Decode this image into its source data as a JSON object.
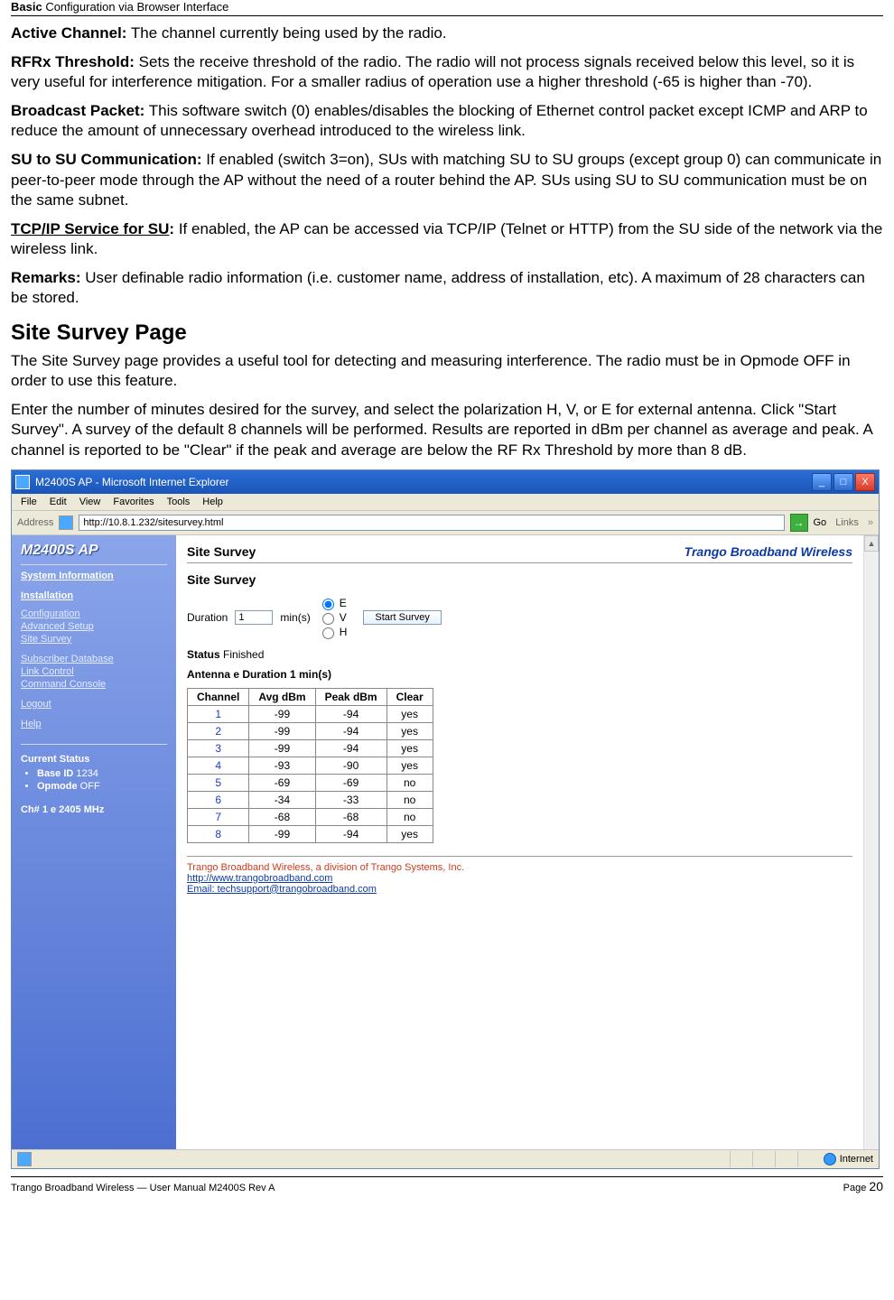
{
  "header": {
    "bold": "Basic",
    "rest": " Configuration via Browser Interface"
  },
  "definitions": [
    {
      "term": "Active Channel:",
      "text": "  The channel currently being used by the radio."
    },
    {
      "term": "RFRx Threshold:",
      "text": "  Sets the receive threshold of the radio. The radio will not process signals received below this level, so it is very useful for interference mitigation. For a smaller radius of operation use a higher threshold (-65 is higher than -70)."
    },
    {
      "term": "Broadcast Packet:",
      "text": "  This software switch (0) enables/disables the blocking of Ethernet control packet except ICMP and ARP to reduce the amount of unnecessary overhead introduced to the wireless link."
    },
    {
      "term": "SU to SU Communication:",
      "text": "  If enabled (switch 3=on), SUs with matching SU to SU groups (except group 0) can communicate in peer-to-peer mode through the AP without the need of a router behind the AP. SUs using SU to SU communication must be on the same subnet."
    },
    {
      "term": "TCP/IP Service for SU",
      "suffix": ":",
      "text": "  If enabled, the AP can be accessed via TCP/IP (Telnet or HTTP) from the SU side of the network via the wireless link."
    },
    {
      "term": "Remarks:",
      "text": "  User definable radio information (i.e. customer name, address of installation, etc). A maximum of 28 characters can be stored."
    }
  ],
  "section_title": "Site Survey Page",
  "section_p1": "The Site Survey page provides a useful tool for detecting and measuring interference. The radio must be in Opmode OFF in order to use this feature.",
  "section_p2": "Enter the number of minutes desired for the survey, and select the polarization H, V, or E for external antenna.  Click \"Start Survey\".  A survey of the default 8 channels will be performed.  Results are reported in dBm per channel as average and peak.  A channel is reported to be \"Clear\" if the peak and average are below the RF Rx Threshold by more than 8 dB.",
  "browser": {
    "title": "M2400S AP - Microsoft Internet Explorer",
    "menus": [
      "File",
      "Edit",
      "View",
      "Favorites",
      "Tools",
      "Help"
    ],
    "address_label": "Address",
    "url": "http://10.8.1.232/sitesurvey.html",
    "go_label": "Go",
    "links_label": "Links",
    "status_zone": "Internet"
  },
  "sidebar": {
    "brand": "M2400S AP",
    "nav": {
      "sysinfo": "System Information",
      "install": "Installation",
      "config": "Configuration",
      "advanced": "Advanced Setup",
      "survey": "Site Survey",
      "subdb": "Subscriber Database",
      "linkctl": "Link Control",
      "cmd": "Command Console",
      "logout": "Logout",
      "help": "Help"
    },
    "status_title": "Current Status",
    "status_items": [
      {
        "label": "Base ID",
        "value": "1234"
      },
      {
        "label": "Opmode",
        "value": "OFF"
      }
    ],
    "channel_line": "Ch# 1 e 2405 MHz"
  },
  "main": {
    "title": "Site Survey",
    "brand": "Trango Broadband Wireless",
    "sub": "Site Survey",
    "duration_label": "Duration",
    "duration_value": "1",
    "mins": "min(s)",
    "opts": [
      "E",
      "V",
      "H"
    ],
    "checked": "E",
    "start_btn": "Start Survey",
    "status_label": "Status",
    "status_value": "Finished",
    "antenna_line": "Antenna e Duration 1 min(s)",
    "columns": [
      "Channel",
      "Avg dBm",
      "Peak dBm",
      "Clear"
    ],
    "rows": [
      [
        "1",
        "-99",
        "-94",
        "yes"
      ],
      [
        "2",
        "-99",
        "-94",
        "yes"
      ],
      [
        "3",
        "-99",
        "-94",
        "yes"
      ],
      [
        "4",
        "-93",
        "-90",
        "yes"
      ],
      [
        "5",
        "-69",
        "-69",
        "no"
      ],
      [
        "6",
        "-34",
        "-33",
        "no"
      ],
      [
        "7",
        "-68",
        "-68",
        "no"
      ],
      [
        "8",
        "-99",
        "-94",
        "yes"
      ]
    ],
    "footer_company": "Trango Broadband Wireless, a division of Trango Systems, Inc.",
    "footer_url": "http://www.trangobroadband.com",
    "footer_email": "Email:  techsupport@trangobroadband.com"
  },
  "doc_footer": {
    "left": "Trango Broadband Wireless — User Manual M2400S Rev A",
    "page_label": "Page ",
    "page_num": "20"
  }
}
